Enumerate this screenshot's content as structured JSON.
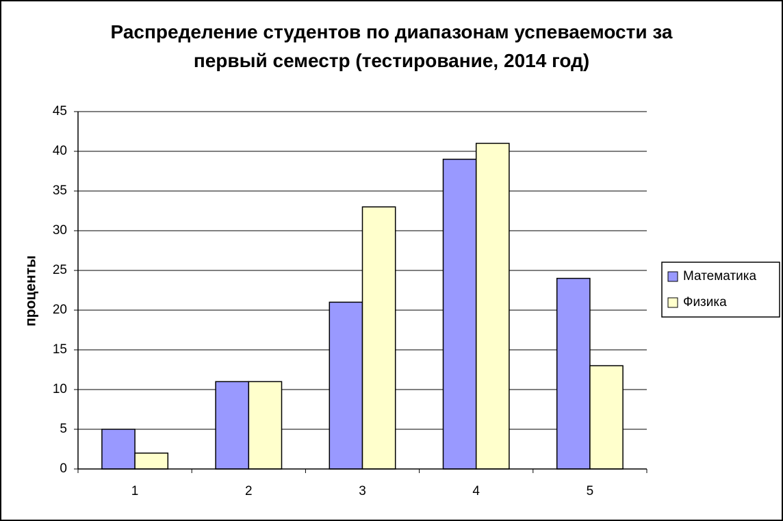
{
  "chart_data": {
    "type": "bar",
    "title": "Распределение студентов по диапазонам успеваемости за первый семестр (тестирование, 2014 год)",
    "y_label": "проценты",
    "categories": [
      "1",
      "2",
      "3",
      "4",
      "5"
    ],
    "series": [
      {
        "name": "Математика",
        "color": "#9999ff",
        "values": [
          5,
          11,
          21,
          39,
          24
        ]
      },
      {
        "name": "Физика",
        "color": "#ffffcc",
        "values": [
          2,
          11,
          33,
          41,
          13
        ]
      }
    ],
    "ylim": [
      0,
      45
    ],
    "yticks": [
      0,
      5,
      10,
      15,
      20,
      25,
      30,
      35,
      40,
      45
    ],
    "grid": true,
    "legend": "right"
  }
}
